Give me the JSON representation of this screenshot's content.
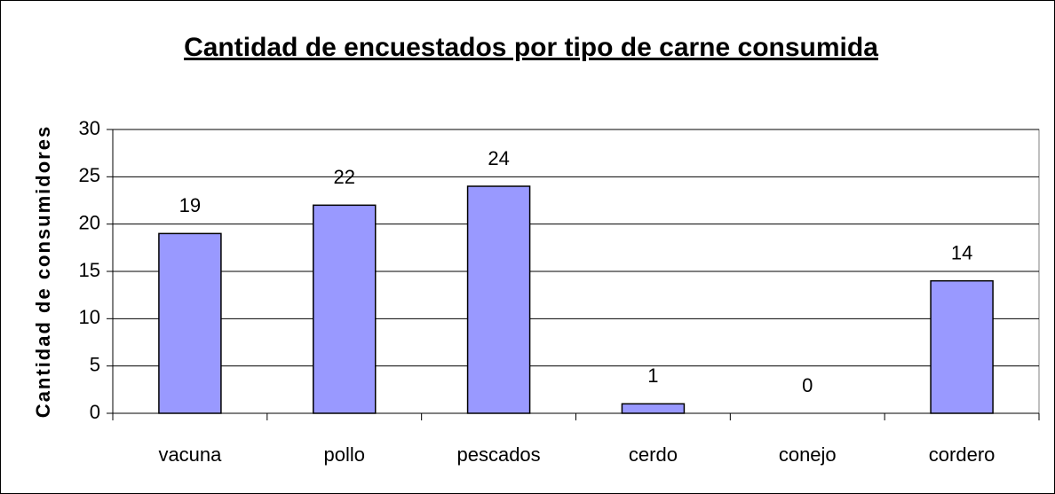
{
  "chart_data": {
    "type": "bar",
    "title": "Cantidad de encuestados por tipo de carne consumida",
    "y_label": "Cantidad de consumidores",
    "categories": [
      "vacuna",
      "pollo",
      "pescados",
      "cerdo",
      "conejo",
      "cordero"
    ],
    "values": [
      19,
      22,
      24,
      1,
      0,
      14
    ],
    "color": "#9999ff",
    "ylim": [
      0,
      30
    ],
    "yticks": [
      0,
      5,
      10,
      15,
      20,
      25,
      30
    ],
    "grid": true
  }
}
